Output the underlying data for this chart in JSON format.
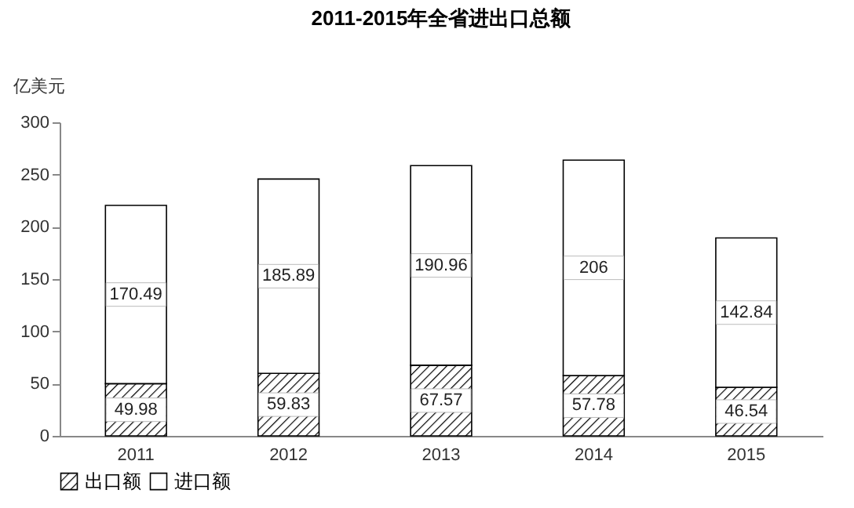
{
  "chart_data": {
    "type": "bar",
    "title": "2011-2015年全省进出口总额",
    "ylabel": "亿美元",
    "categories": [
      "2011",
      "2012",
      "2013",
      "2014",
      "2015"
    ],
    "stacked": true,
    "data_labels": true,
    "legend": "bottom",
    "grid": false,
    "ylim": [
      0,
      300
    ],
    "yticks": [
      0,
      50,
      100,
      150,
      200,
      250,
      300
    ],
    "series": [
      {
        "name": "出口额",
        "color": "#000000",
        "values": [
          49.98,
          59.83,
          67.57,
          57.78,
          46.54
        ]
      },
      {
        "name": "进口额",
        "color": "#ffffff",
        "values": [
          170.49,
          185.89,
          190.96,
          206,
          142.84
        ]
      }
    ]
  }
}
